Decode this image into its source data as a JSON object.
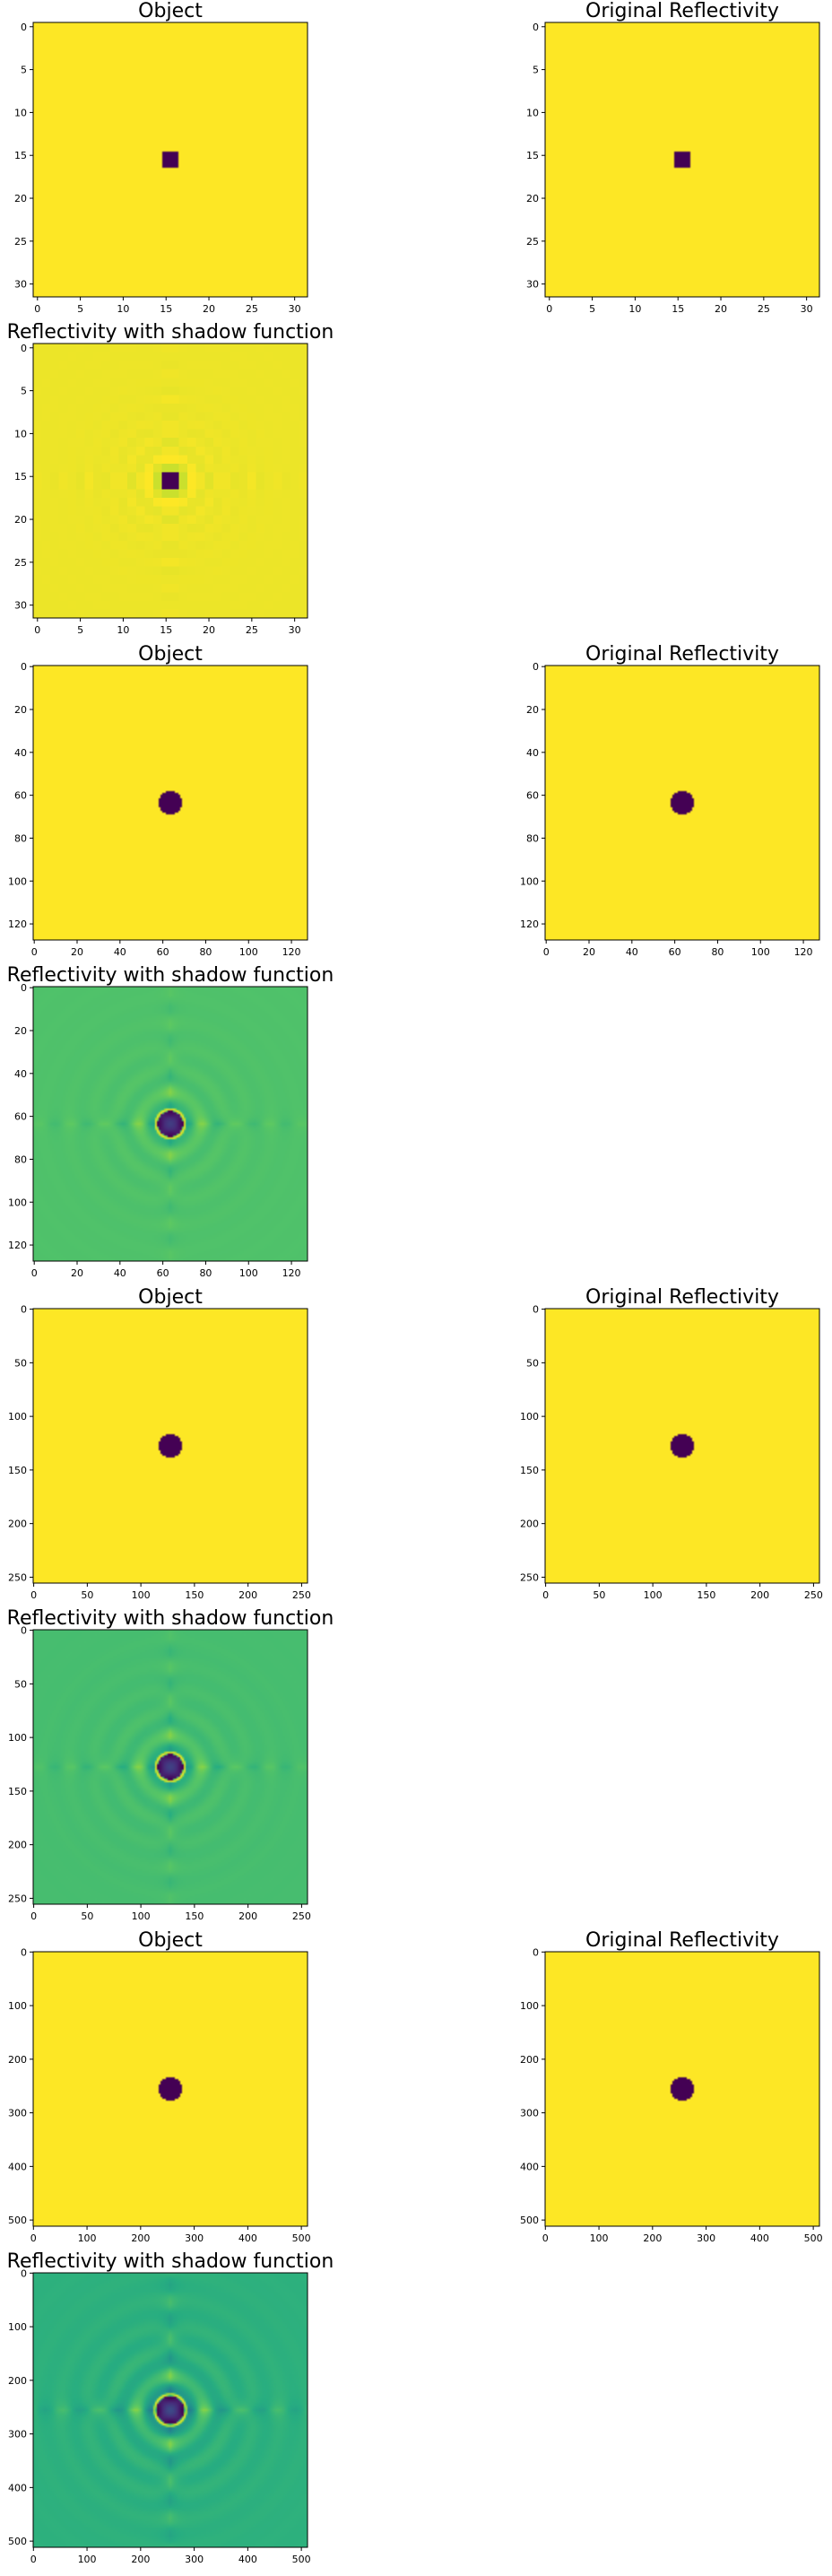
{
  "figure": {
    "background": "#ffffff"
  },
  "colormap": "viridis",
  "chart_data": [
    {
      "id": "n32-object",
      "type": "heatmap",
      "title": "Object",
      "n": 32,
      "xticks": [
        0,
        5,
        10,
        15,
        20,
        25,
        30
      ],
      "yticks": [
        0,
        5,
        10,
        15,
        20,
        25,
        30
      ],
      "pattern": "square",
      "center": [
        15.5,
        15.5
      ],
      "half_width": 1,
      "background_value": 1,
      "object_value": 0
    },
    {
      "id": "n32-original",
      "type": "heatmap",
      "title": "Original Reflectivity",
      "n": 32,
      "xticks": [
        0,
        5,
        10,
        15,
        20,
        25,
        30
      ],
      "yticks": [
        0,
        5,
        10,
        15,
        20,
        25,
        30
      ],
      "pattern": "square",
      "center": [
        15.5,
        15.5
      ],
      "half_width": 1,
      "background_value": 1,
      "object_value": 0
    },
    {
      "id": "n32-shadow",
      "type": "heatmap",
      "title": "Reflectivity with shadow function",
      "n": 32,
      "xticks": [
        0,
        5,
        10,
        15,
        20,
        25,
        30
      ],
      "yticks": [
        0,
        5,
        10,
        15,
        20,
        25,
        30
      ],
      "pattern": "shadow",
      "center": [
        15.5,
        15.5
      ],
      "radius": 1.2,
      "background_value": 0.85,
      "object_value": 0.05,
      "ripple_amplitude": 0.07,
      "pixelated": true
    },
    {
      "id": "n128-object",
      "type": "heatmap",
      "title": "Object",
      "n": 128,
      "xticks": [
        0,
        20,
        40,
        60,
        80,
        100,
        120
      ],
      "yticks": [
        0,
        20,
        40,
        60,
        80,
        100,
        120
      ],
      "pattern": "disk",
      "center": [
        63.5,
        63.5
      ],
      "radius": 5.5,
      "background_value": 1,
      "object_value": 0
    },
    {
      "id": "n128-original",
      "type": "heatmap",
      "title": "Original Reflectivity",
      "n": 128,
      "xticks": [
        0,
        20,
        40,
        60,
        80,
        100,
        120
      ],
      "yticks": [
        0,
        20,
        40,
        60,
        80,
        100,
        120
      ],
      "pattern": "disk",
      "center": [
        63.5,
        63.5
      ],
      "radius": 5.5,
      "background_value": 1,
      "object_value": 0
    },
    {
      "id": "n128-shadow",
      "type": "heatmap",
      "title": "Reflectivity with shadow function",
      "n": 128,
      "xticks": [
        0,
        20,
        40,
        60,
        80,
        100,
        120
      ],
      "yticks": [
        0,
        20,
        40,
        60,
        80,
        100,
        120
      ],
      "pattern": "shadow",
      "center": [
        63.5,
        63.5
      ],
      "radius": 6,
      "background_value": 0.78,
      "object_value": 0.28,
      "ripple_amplitude": 0.09
    },
    {
      "id": "n256-object",
      "type": "heatmap",
      "title": "Object",
      "n": 256,
      "xticks": [
        0,
        50,
        100,
        150,
        200,
        250
      ],
      "yticks": [
        0,
        50,
        100,
        150,
        200,
        250
      ],
      "pattern": "disk",
      "center": [
        127.5,
        127.5
      ],
      "radius": 11,
      "background_value": 1,
      "object_value": 0
    },
    {
      "id": "n256-original",
      "type": "heatmap",
      "title": "Original Reflectivity",
      "n": 256,
      "xticks": [
        0,
        50,
        100,
        150,
        200,
        250
      ],
      "yticks": [
        0,
        50,
        100,
        150,
        200,
        250
      ],
      "pattern": "disk",
      "center": [
        127.5,
        127.5
      ],
      "radius": 11,
      "background_value": 1,
      "object_value": 0
    },
    {
      "id": "n256-shadow",
      "type": "heatmap",
      "title": "Reflectivity with shadow function",
      "n": 256,
      "xticks": [
        0,
        50,
        100,
        150,
        200,
        250
      ],
      "yticks": [
        0,
        50,
        100,
        150,
        200,
        250
      ],
      "pattern": "shadow",
      "center": [
        127.5,
        127.5
      ],
      "radius": 12,
      "background_value": 0.74,
      "object_value": 0.3,
      "ripple_amplitude": 0.1
    },
    {
      "id": "n512-object",
      "type": "heatmap",
      "title": "Object",
      "n": 512,
      "xticks": [
        0,
        100,
        200,
        300,
        400,
        500
      ],
      "yticks": [
        0,
        100,
        200,
        300,
        400,
        500
      ],
      "pattern": "disk",
      "center": [
        255.5,
        255.5
      ],
      "radius": 22,
      "background_value": 1,
      "object_value": 0
    },
    {
      "id": "n512-original",
      "type": "heatmap",
      "title": "Original Reflectivity",
      "n": 512,
      "xticks": [
        0,
        100,
        200,
        300,
        400,
        500
      ],
      "yticks": [
        0,
        100,
        200,
        300,
        400,
        500
      ],
      "pattern": "disk",
      "center": [
        255.5,
        255.5
      ],
      "radius": 22,
      "background_value": 1,
      "object_value": 0
    },
    {
      "id": "n512-shadow",
      "type": "heatmap",
      "title": "Reflectivity with shadow function",
      "n": 512,
      "xticks": [
        0,
        100,
        200,
        300,
        400,
        500
      ],
      "yticks": [
        0,
        100,
        200,
        300,
        400,
        500
      ],
      "pattern": "shadow",
      "center": [
        255.5,
        255.5
      ],
      "radius": 26,
      "background_value": 0.6,
      "object_value": 0.28,
      "ripple_amplitude": 0.12
    }
  ]
}
